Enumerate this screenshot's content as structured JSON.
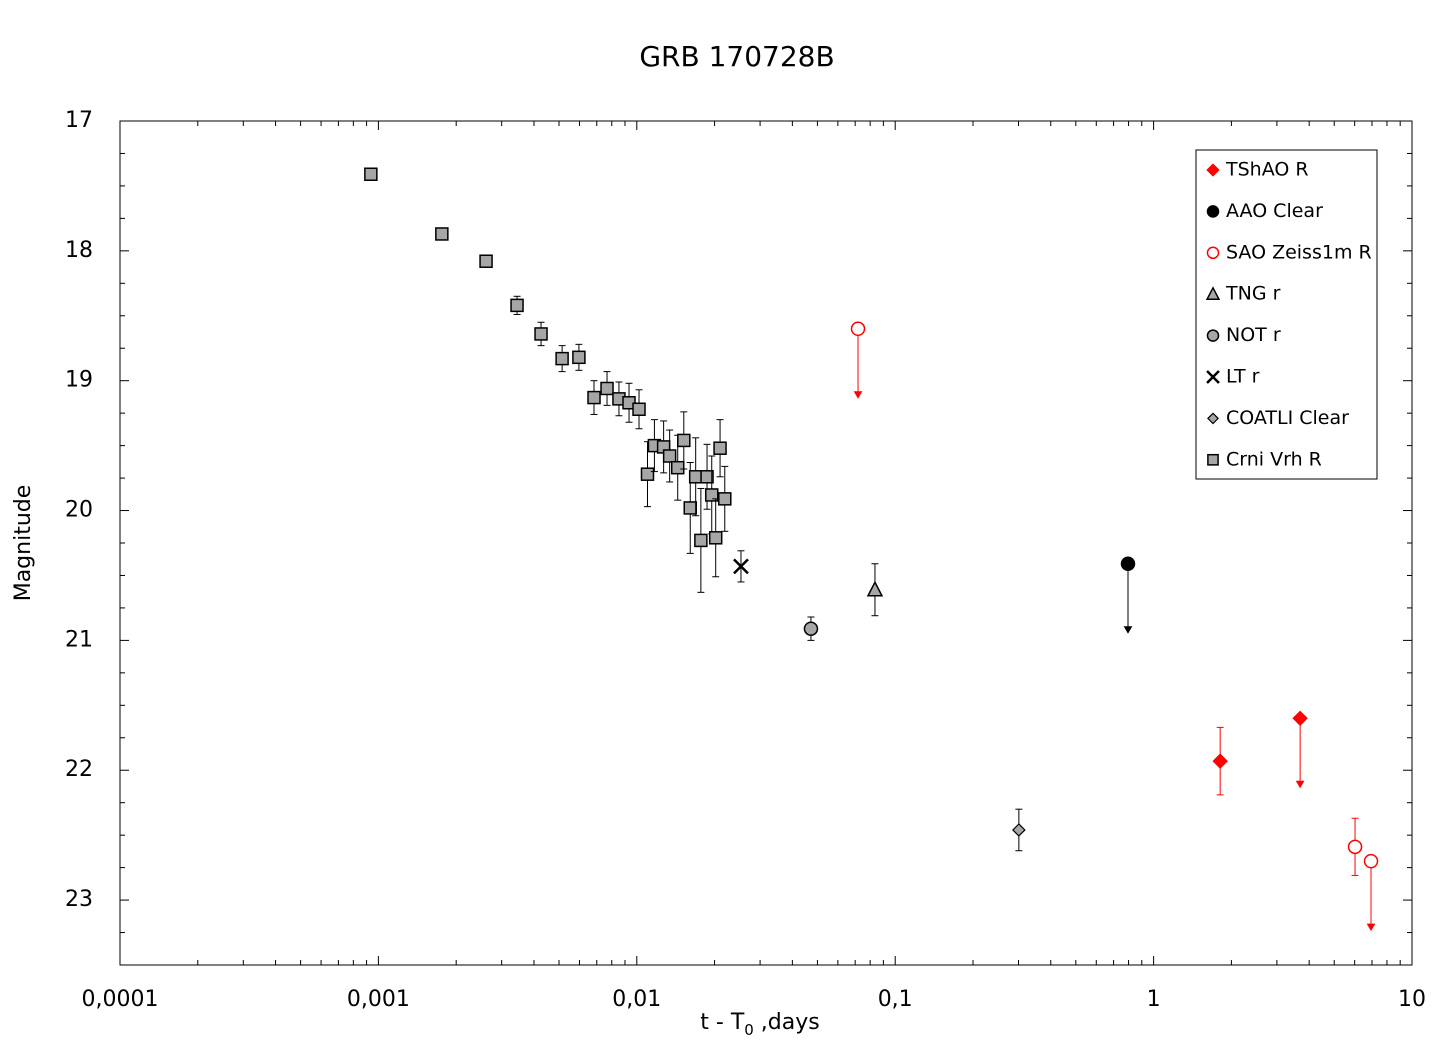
{
  "chart_data": {
    "type": "scatter",
    "title": "GRB 170728B",
    "xlabel_parts": [
      "t - T",
      "0",
      " ,days"
    ],
    "ylabel": "Magnitude",
    "xscale": "log",
    "y_inverted": true,
    "xlim": [
      0.0001,
      10
    ],
    "ylim": [
      17,
      23.5
    ],
    "xticks": [
      {
        "value": 0.0001,
        "label": "0,0001"
      },
      {
        "value": 0.001,
        "label": "0,001"
      },
      {
        "value": 0.01,
        "label": "0,01"
      },
      {
        "value": 0.1,
        "label": "0,1"
      },
      1,
      10
    ],
    "yticks": [
      17,
      18,
      19,
      20,
      21,
      22,
      23
    ],
    "legend": "upper right",
    "series": [
      {
        "name": "TShAO R",
        "color": "#ff0000",
        "marker": "diamond",
        "filled": true,
        "x": [
          1.81,
          3.69
        ],
        "values": [
          21.93,
          21.6
        ],
        "errors": [
          0.26,
          null
        ],
        "upper_limit": [
          false,
          true
        ]
      },
      {
        "name": "AAO Clear",
        "color": "#000000",
        "marker": "circle",
        "filled": true,
        "x": [
          0.796
        ],
        "values": [
          20.41
        ],
        "errors": [
          null
        ],
        "upper_limit": [
          true
        ]
      },
      {
        "name": "SAO Zeiss1m R",
        "color": "#ff0000",
        "marker": "circle",
        "filled": false,
        "x": [
          0.0718,
          6.02,
          6.94
        ],
        "values": [
          18.6,
          22.59,
          22.7
        ],
        "errors": [
          null,
          0.22,
          null
        ],
        "upper_limit": [
          true,
          false,
          true
        ]
      },
      {
        "name": "TNG r",
        "color": "#a6a6a6",
        "marker": "triangle",
        "filled": true,
        "x": [
          0.0835
        ],
        "values": [
          20.61
        ],
        "errors": [
          0.2
        ],
        "upper_limit": [
          false
        ]
      },
      {
        "name": "NOT r",
        "color": "#a6a6a6",
        "marker": "circle",
        "filled": true,
        "x": [
          0.0472
        ],
        "values": [
          20.91
        ],
        "errors": [
          0.09
        ],
        "upper_limit": [
          false
        ]
      },
      {
        "name": "LT r",
        "color": "#000000",
        "marker": "cross",
        "filled": true,
        "x": [
          0.0253
        ],
        "values": [
          20.43
        ],
        "errors": [
          0.12
        ],
        "upper_limit": [
          false
        ]
      },
      {
        "name": "COATLI Clear",
        "color": "#a6a6a6",
        "marker": "smalldiamond",
        "filled": true,
        "x": [
          0.301
        ],
        "values": [
          22.46
        ],
        "errors": [
          0.16
        ],
        "upper_limit": [
          false
        ]
      },
      {
        "name": "Crni Vrh R",
        "color": "#a6a6a6",
        "marker": "square",
        "filled": true,
        "x": [
          0.000935,
          0.00176,
          0.00261,
          0.00344,
          0.00426,
          0.00514,
          0.00597,
          0.00683,
          0.00767,
          0.00853,
          0.00933,
          0.0102,
          0.011,
          0.0117,
          0.0127,
          0.0134,
          0.0144,
          0.0152,
          0.0161,
          0.0169,
          0.0177,
          0.0187,
          0.0195,
          0.0202,
          0.021,
          0.0219
        ],
        "values": [
          17.41,
          17.87,
          18.08,
          18.42,
          18.64,
          18.83,
          18.82,
          19.13,
          19.06,
          19.14,
          19.17,
          19.22,
          19.72,
          19.5,
          19.51,
          19.58,
          19.67,
          19.46,
          19.98,
          19.74,
          20.23,
          19.74,
          19.88,
          20.21,
          19.52,
          19.91
        ],
        "errors": [
          0.02,
          0.02,
          0.04,
          0.07,
          0.09,
          0.1,
          0.1,
          0.13,
          0.13,
          0.13,
          0.15,
          0.15,
          0.25,
          0.2,
          0.2,
          0.2,
          0.25,
          0.22,
          0.35,
          0.3,
          0.4,
          0.25,
          0.3,
          0.3,
          0.22,
          0.25
        ],
        "upper_limit": [
          false,
          false,
          false,
          false,
          false,
          false,
          false,
          false,
          false,
          false,
          false,
          false,
          false,
          false,
          false,
          false,
          false,
          false,
          false,
          false,
          false,
          false,
          false,
          false,
          false,
          false
        ]
      }
    ]
  }
}
